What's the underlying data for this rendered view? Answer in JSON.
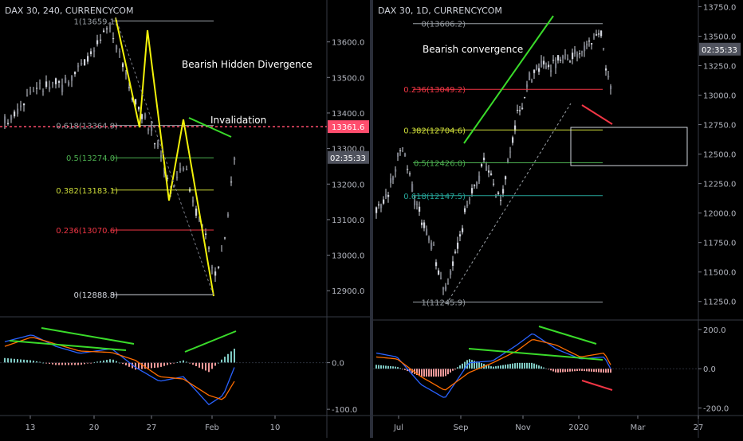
{
  "charts": [
    {
      "id": "left",
      "title": "DAX 30, 240, CURRENCYCOM",
      "ylim": [
        12840,
        13700
      ],
      "yticks": [
        "13600.0",
        "13500.0",
        "13400.0",
        "13300.0",
        "13200.0",
        "13100.0",
        "13000.0",
        "12900.0"
      ],
      "ytick_values": [
        13600,
        13500,
        13400,
        13300,
        13200,
        13100,
        13000,
        12900
      ],
      "price_label": "13361.6",
      "price_value": 13361.6,
      "price_label_color": "#ff4d6d",
      "time_label": "02:35:33",
      "time_value": 13275,
      "fib_levels": [
        {
          "label": "1(13659.1)",
          "value": 13659.1,
          "color": "#9aa0a6"
        },
        {
          "label": "0.618(13364.9)",
          "value": 13364.9,
          "color": "#9aa0a6"
        },
        {
          "label": "0.5(13274.0)",
          "value": 13274.0,
          "color": "#4caf50"
        },
        {
          "label": "0.382(13183.1)",
          "value": 13183.1,
          "color": "#cddc39"
        },
        {
          "label": "0.236(13070.6)",
          "value": 13070.6,
          "color": "#f23645"
        },
        {
          "label": "0(12888.8)",
          "value": 12888.8,
          "color": "#d1d4dc"
        }
      ],
      "annotations": [
        "Bearish Hidden Divergence",
        "Invalidation"
      ],
      "osc_yticks": [
        "0.0",
        "-100.0"
      ],
      "osc_tick_values": [
        0,
        -100
      ],
      "osc_ylim": [
        -110,
        95
      ],
      "xticks": [
        "13",
        "20",
        "27",
        "Feb",
        "10"
      ],
      "accent_color": "#f2f20a"
    },
    {
      "id": "right",
      "title": "DAX 30, 1D, CURRENCYCOM",
      "ylim": [
        11120,
        13780
      ],
      "yticks": [
        "13750.0",
        "13500.0",
        "13250.0",
        "13000.0",
        "12750.0",
        "12500.0",
        "12250.0",
        "12000.0",
        "11750.0",
        "11500.0",
        "11250.0"
      ],
      "ytick_values": [
        13750,
        13500,
        13250,
        13000,
        12750,
        12500,
        12250,
        12000,
        11750,
        11500,
        11250
      ],
      "time_label": "02:35:33",
      "time_value": 13390,
      "fib_levels": [
        {
          "label": "0(13606.2)",
          "value": 13606.2,
          "color": "#9aa0a6"
        },
        {
          "label": "0.236(13049.2)",
          "value": 13049.2,
          "color": "#f23645"
        },
        {
          "label": "0.382(12704.6)",
          "value": 12704.6,
          "color": "#cddc39"
        },
        {
          "label": "0.5(12426.0)",
          "value": 12426.0,
          "color": "#4caf50"
        },
        {
          "label": "0.618(12147.5)",
          "value": 12147.5,
          "color": "#26a69a"
        },
        {
          "label": "1(11245.9)",
          "value": 11245.9,
          "color": "#9aa0a6"
        }
      ],
      "annotations": [
        "Bearish convergence"
      ],
      "osc_yticks": [
        "200.0",
        "0.0",
        "-200.0"
      ],
      "osc_tick_values": [
        200,
        0,
        -200
      ],
      "osc_ylim": [
        -230,
        240
      ],
      "xticks": [
        "Jul",
        "Sep",
        "Nov",
        "2020",
        "Mar",
        "27"
      ]
    }
  ]
}
